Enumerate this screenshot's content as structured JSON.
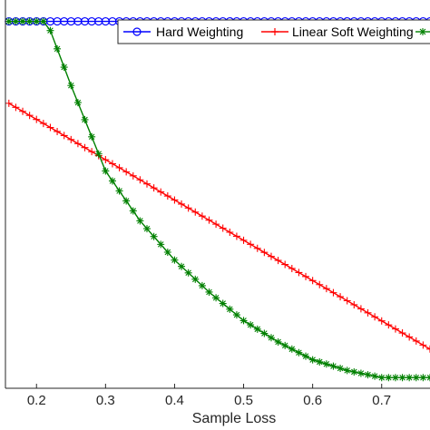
{
  "chart_data": {
    "type": "line",
    "title": "",
    "xlabel": "Sample Loss",
    "ylabel": "",
    "xlim": [
      0.155,
      0.77
    ],
    "ylim": [
      -0.03,
      1.06
    ],
    "xticks": [
      0.2,
      0.3,
      0.4,
      0.5,
      0.6,
      0.7
    ],
    "xtick_labels": [
      "0.2",
      "0.3",
      "0.4",
      "0.5",
      "0.6",
      "0.7"
    ],
    "grid": false,
    "legend": "top-right",
    "series": [
      {
        "name": "Hard Weighting",
        "color": "#0000ff",
        "marker": "circle",
        "x": [
          0.16,
          0.77
        ],
        "y": [
          1.0,
          1.0
        ]
      },
      {
        "name": "Linear Soft Weighting",
        "color": "#ff0000",
        "marker": "plus",
        "x": [
          0.16,
          0.77
        ],
        "y": [
          0.77,
          0.08
        ]
      },
      {
        "name": "",
        "color": "#008000",
        "marker": "star",
        "x": [
          0.16,
          0.2,
          0.215,
          0.25,
          0.3,
          0.35,
          0.4,
          0.45,
          0.5,
          0.55,
          0.6,
          0.65,
          0.7,
          0.77
        ],
        "y": [
          1.0,
          1.0,
          1.0,
          0.82,
          0.58,
          0.44,
          0.33,
          0.24,
          0.16,
          0.1,
          0.05,
          0.02,
          0.0,
          0.0
        ]
      }
    ]
  }
}
